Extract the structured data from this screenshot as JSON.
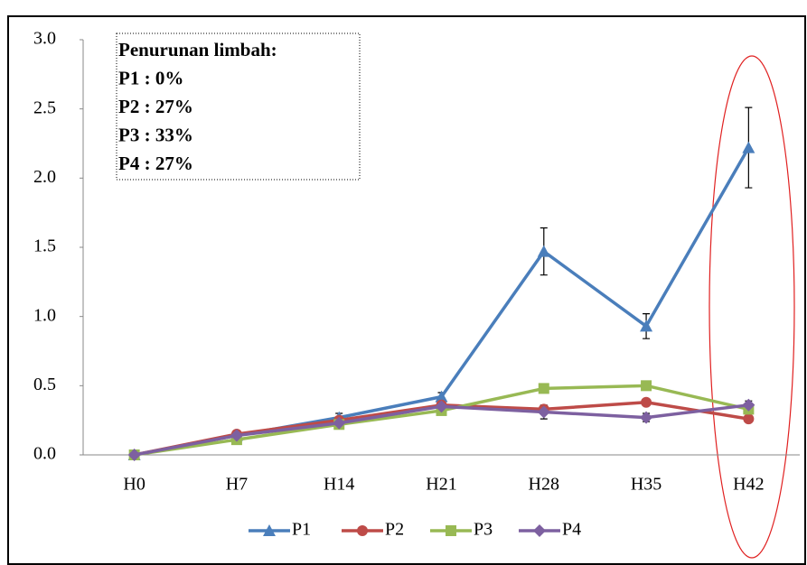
{
  "chart_data": {
    "type": "line",
    "categories": [
      "H0",
      "H7",
      "H14",
      "H21",
      "H28",
      "H35",
      "H42"
    ],
    "series": [
      {
        "name": "P1",
        "color": "#4a7ebb",
        "marker": "triangle",
        "values": [
          0,
          0.14,
          0.27,
          0.42,
          1.47,
          0.93,
          2.22
        ],
        "errors": [
          0,
          0.02,
          0.03,
          0.03,
          0.17,
          0.09,
          0.29
        ]
      },
      {
        "name": "P2",
        "color": "#be4b48",
        "marker": "circle",
        "values": [
          0,
          0.15,
          0.25,
          0.36,
          0.33,
          0.38,
          0.26
        ]
      },
      {
        "name": "P3",
        "color": "#98b954",
        "marker": "square",
        "values": [
          0,
          0.11,
          0.22,
          0.32,
          0.48,
          0.5,
          0.33
        ]
      },
      {
        "name": "P4",
        "color": "#7d60a0",
        "marker": "diamond",
        "values": [
          0,
          0.14,
          0.23,
          0.35,
          0.31,
          0.27,
          0.36
        ],
        "errors": [
          0,
          0.01,
          0.02,
          0.04,
          0.05,
          0.03,
          0.03
        ]
      }
    ],
    "ylim": [
      0,
      3
    ],
    "yticks": [
      {
        "value": 0,
        "label": "0.0"
      },
      0.5,
      {
        "value": 1,
        "label": "1.0"
      },
      1.5,
      {
        "value": 2,
        "label": "2.0"
      },
      2.5,
      {
        "value": 3,
        "label": "3.0"
      }
    ],
    "annotation": [
      "Penurunan limbah:",
      "P1 : 0%",
      "P2 : 27%",
      "P3 : 33%",
      "P4 : 27%"
    ],
    "legend": "bottom",
    "grid": false
  }
}
